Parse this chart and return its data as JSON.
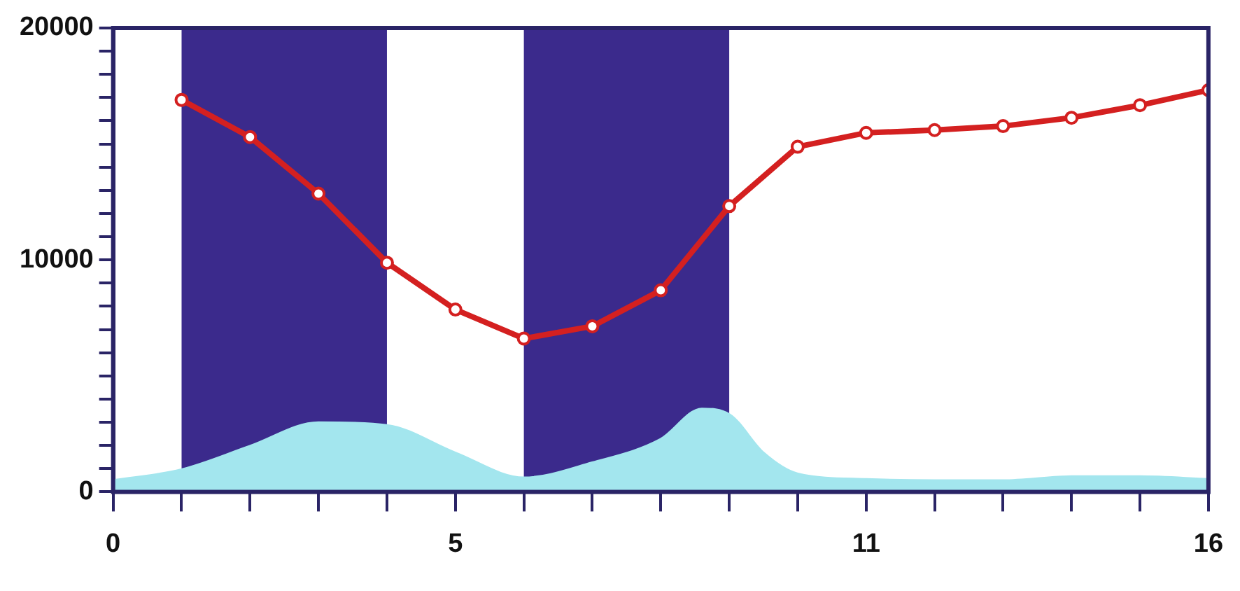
{
  "chart_data": {
    "type": "line",
    "xlim": [
      0,
      16
    ],
    "ylim": [
      0,
      20000
    ],
    "xticks": [
      0,
      {
        "value": 1,
        "label": null
      },
      {
        "value": 2,
        "label": null
      },
      {
        "value": 3,
        "label": null
      },
      {
        "value": 4,
        "label": null
      },
      5,
      {
        "value": 6,
        "label": null
      },
      {
        "value": 7,
        "label": null
      },
      {
        "value": 8,
        "label": null
      },
      {
        "value": 9,
        "label": null
      },
      {
        "value": 10,
        "label": null
      },
      11,
      {
        "value": 12,
        "label": null
      },
      {
        "value": 13,
        "label": null
      },
      {
        "value": 14,
        "label": null
      },
      {
        "value": 15,
        "label": null
      },
      16
    ],
    "yticks": [
      0,
      {
        "value": 1000,
        "label": null
      },
      {
        "value": 2000,
        "label": null
      },
      {
        "value": 3000,
        "label": null
      },
      {
        "value": 4000,
        "label": null
      },
      {
        "value": 5000,
        "label": null
      },
      {
        "value": 6000,
        "label": null
      },
      {
        "value": 7000,
        "label": null
      },
      {
        "value": 8000,
        "label": null
      },
      {
        "value": 9000,
        "label": null
      },
      10000,
      {
        "value": 11000,
        "label": null
      },
      {
        "value": 12000,
        "label": null
      },
      {
        "value": 13000,
        "label": null
      },
      {
        "value": 14000,
        "label": null
      },
      {
        "value": 15000,
        "label": null
      },
      {
        "value": 16000,
        "label": null
      },
      {
        "value": 17000,
        "label": null
      },
      {
        "value": 18000,
        "label": null
      },
      {
        "value": 19000,
        "label": null
      },
      20000
    ],
    "bands": [
      {
        "axis": "x",
        "from": 1,
        "to": 4,
        "color": "#3b2a8c"
      },
      {
        "axis": "x",
        "from": 6,
        "to": 9,
        "color": "#3b2a8c"
      }
    ],
    "series": [
      {
        "type": "area",
        "color": "#a3e6ee",
        "x": [
          0,
          1,
          2,
          3,
          4,
          5,
          6,
          7,
          8,
          8.6,
          9,
          9.5,
          10,
          11,
          12,
          13,
          14,
          15,
          16
        ],
        "values": [
          480,
          950,
          1960,
          2980,
          2860,
          1670,
          600,
          1250,
          2260,
          3570,
          3330,
          1670,
          770,
          530,
          480,
          480,
          650,
          650,
          530
        ]
      },
      {
        "type": "line",
        "color": "#d42020",
        "marker": "circle",
        "x": [
          1,
          2,
          3,
          4,
          5,
          6,
          7,
          8,
          9,
          10,
          11,
          12,
          13,
          14,
          15,
          16
        ],
        "values": [
          16900,
          15300,
          12860,
          9880,
          7860,
          6610,
          7140,
          8690,
          12320,
          14880,
          15480,
          15600,
          15770,
          16130,
          16670,
          17320
        ]
      }
    ],
    "grid": false,
    "legend": false
  }
}
